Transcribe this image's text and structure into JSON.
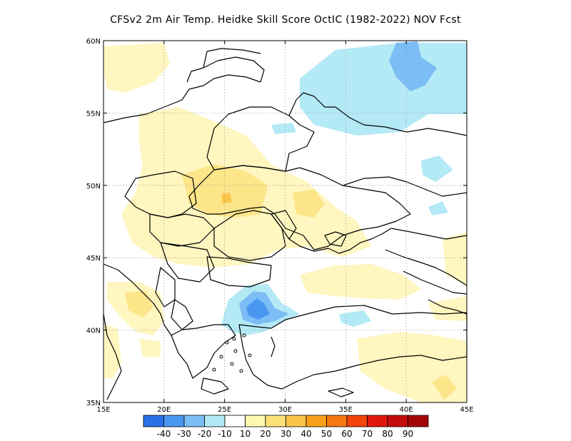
{
  "title": "CFSv2  2m Air Temp. Heidke Skill Score OctIC (1982-2022) NOV Fcst",
  "map": {
    "lon_range": [
      15,
      45
    ],
    "lat_range": [
      35,
      60
    ],
    "lon_ticks": [
      {
        "value": 15,
        "label": "15E"
      },
      {
        "value": 20,
        "label": "20E"
      },
      {
        "value": 25,
        "label": "25E"
      },
      {
        "value": 30,
        "label": "30E"
      },
      {
        "value": 35,
        "label": "35E"
      },
      {
        "value": 40,
        "label": "40E"
      },
      {
        "value": 45,
        "label": "45E"
      }
    ],
    "lat_ticks": [
      {
        "value": 35,
        "label": "35N"
      },
      {
        "value": 40,
        "label": "40N"
      },
      {
        "value": 45,
        "label": "45N"
      },
      {
        "value": 50,
        "label": "50N"
      },
      {
        "value": 55,
        "label": "55N"
      },
      {
        "value": 60,
        "label": "60N"
      }
    ],
    "grid": true
  },
  "colorbar": {
    "colors": [
      "#2b6fe8",
      "#4a97f0",
      "#7cbdf5",
      "#b4e9f6",
      "#ffffff",
      "#fff8b0",
      "#fde27a",
      "#fcc54a",
      "#f9a11a",
      "#f67810",
      "#f4450c",
      "#e0180c",
      "#c40c0c",
      "#a40606"
    ],
    "labels": [
      "-40",
      "-30",
      "-20",
      "-10",
      "10",
      "20",
      "30",
      "40",
      "50",
      "60",
      "70",
      "80",
      "90"
    ]
  },
  "fill_colors": {
    "light_yellow": "#fff6c0",
    "yellow": "#fde58a",
    "orange": "#fcc54a",
    "light_blue": "#b4e9f6",
    "blue": "#7cbdf5",
    "dark_blue": "#4a97f0"
  }
}
